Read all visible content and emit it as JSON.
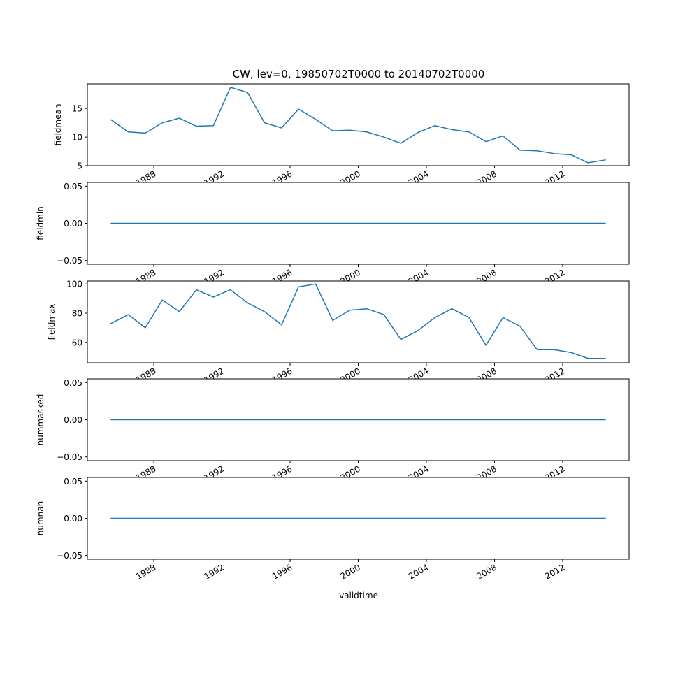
{
  "chart_data": {
    "type": "line",
    "title": "CW, lev=0, 19850702T0000 to 20140702T0000",
    "xlabel": "validtime",
    "x": [
      1985.5,
      1986.5,
      1987.5,
      1988.5,
      1989.5,
      1990.5,
      1991.5,
      1992.5,
      1993.5,
      1994.5,
      1995.5,
      1996.5,
      1997.5,
      1998.5,
      1999.5,
      2000.5,
      2001.5,
      2002.5,
      2003.5,
      2004.5,
      2005.5,
      2006.5,
      2007.5,
      2008.5,
      2009.5,
      2010.5,
      2011.5,
      2012.5,
      2013.5,
      2014.5
    ],
    "x_ticks": [
      1988,
      1992,
      1996,
      2000,
      2004,
      2008,
      2012
    ],
    "x_tick_labels": [
      "1988",
      "1992",
      "1996",
      "2000",
      "2004",
      "2008",
      "2012"
    ],
    "xlim": [
      1984.1,
      2015.9
    ],
    "line_color": "#1f77b4",
    "subplots": [
      {
        "ylabel": "fieldmean",
        "ylim": [
          5,
          19.3
        ],
        "yticks": [
          5,
          10,
          15
        ],
        "ytick_labels": [
          "5",
          "10",
          "15"
        ],
        "values": [
          13.0,
          10.9,
          10.7,
          12.5,
          13.3,
          11.9,
          12.0,
          18.7,
          17.8,
          12.5,
          11.6,
          14.9,
          13.1,
          11.1,
          11.2,
          10.9,
          10.0,
          8.9,
          10.8,
          12.0,
          11.3,
          10.9,
          9.2,
          10.2,
          7.7,
          7.6,
          7.1,
          6.9,
          5.5,
          6.0
        ]
      },
      {
        "ylabel": "fieldmin",
        "ylim": [
          -0.055,
          0.055
        ],
        "yticks": [
          -0.05,
          0,
          0.05
        ],
        "ytick_labels": [
          "−0.05",
          "0.00",
          "0.05"
        ],
        "values": [
          0,
          0,
          0,
          0,
          0,
          0,
          0,
          0,
          0,
          0,
          0,
          0,
          0,
          0,
          0,
          0,
          0,
          0,
          0,
          0,
          0,
          0,
          0,
          0,
          0,
          0,
          0,
          0,
          0,
          0
        ]
      },
      {
        "ylabel": "fieldmax",
        "ylim": [
          46,
          102
        ],
        "yticks": [
          60,
          80,
          100
        ],
        "ytick_labels": [
          "60",
          "80",
          "100"
        ],
        "values": [
          73,
          79,
          70,
          89,
          81,
          96,
          91,
          96,
          87,
          81,
          72,
          98,
          100,
          75,
          82,
          83,
          79,
          62,
          68,
          77,
          83,
          77,
          58,
          77,
          71,
          55,
          55,
          53,
          49,
          49
        ]
      },
      {
        "ylabel": "nummasked",
        "ylim": [
          -0.055,
          0.055
        ],
        "yticks": [
          -0.05,
          0,
          0.05
        ],
        "ytick_labels": [
          "−0.05",
          "0.00",
          "0.05"
        ],
        "values": [
          0,
          0,
          0,
          0,
          0,
          0,
          0,
          0,
          0,
          0,
          0,
          0,
          0,
          0,
          0,
          0,
          0,
          0,
          0,
          0,
          0,
          0,
          0,
          0,
          0,
          0,
          0,
          0,
          0,
          0
        ]
      },
      {
        "ylabel": "numnan",
        "ylim": [
          -0.055,
          0.055
        ],
        "yticks": [
          -0.05,
          0,
          0.05
        ],
        "ytick_labels": [
          "−0.05",
          "0.00",
          "0.05"
        ],
        "values": [
          0,
          0,
          0,
          0,
          0,
          0,
          0,
          0,
          0,
          0,
          0,
          0,
          0,
          0,
          0,
          0,
          0,
          0,
          0,
          0,
          0,
          0,
          0,
          0,
          0,
          0,
          0,
          0,
          0,
          0
        ]
      }
    ]
  }
}
